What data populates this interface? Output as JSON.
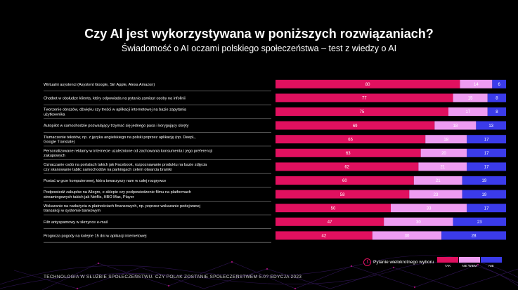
{
  "title": "Czy AI jest wykorzystywana w poniższych rozwiązaniach?",
  "subtitle": "Świadomość o AI oczami polskiego społeczeństwa – test z wiedzy o AI",
  "footer": "TECHNOLOGIA W SŁUŻBIE SPOŁECZEŃSTWU. CZY POLAK ZOSTANIE SPOŁECZEŃSTWEM 5.0? EDYCJA 2023",
  "note": "Pytanie wielokrotnego wyboru",
  "note_icon": "!",
  "colors": {
    "tak": "#e0105f",
    "nie_wiem": "#ee9cf2",
    "nie": "#3b3bea"
  },
  "chart_data": {
    "type": "bar",
    "orientation": "horizontal",
    "stacked": true,
    "categories": [
      "Wirtualni asystenci (Asystent Google, Siri Apple, Alexa Amazon)",
      "Chatbot w obsłudze klienta, który odpowiada na pytania zamiast osoby na infolinii",
      "Tworzenie obrazów, dźwięku czy treści w aplikacji internetowej na bazie zapytania użytkownika",
      "Autopilot w samochodzie pozwalający trzymać się jednego pasa i korygujący skręty",
      "Tłumaczenie tekstów, np. z języka angielskiego na polski poprzez aplikację (np. DeepL, Google Translate)",
      "Personalizowane reklamy w internecie uzależnione od zachowania konsumenta i jego preferencji zakupowych",
      "Oznaczanie osób na portalach takich jak Facebook, rozpoznawanie produktu na bazie zdjęcia czy skanowanie tablic samochodów na parkingach celem otwarcia bramki",
      "Postać w grze komputerowej, która towarzyszy nam w całej rozgrywce",
      "Podpowiedź zakupów na Allegro, e-sklepie czy podpowiedzenie filmu na platformach streamingowych takich jak Netflix, HBO Max, Player",
      "Wskazanie na nadużycia w płatnościach finansowych, np. poprzez wskazanie podejrzanej transakcji w systemie bankowym",
      "Filtr antyspamowy w skrzynce e-mail",
      "Prognoza pogody na kolejne 15 dni w aplikacji internetowej"
    ],
    "series": [
      {
        "name": "TAK",
        "values": [
          80,
          77,
          75,
          69,
          65,
          63,
          62,
          60,
          58,
          50,
          47,
          42
        ]
      },
      {
        "name": "NIE WIEM",
        "values": [
          14,
          15,
          17,
          18,
          18,
          20,
          21,
          21,
          23,
          33,
          30,
          30
        ]
      },
      {
        "name": "NIE",
        "values": [
          6,
          8,
          8,
          13,
          17,
          17,
          17,
          19,
          19,
          17,
          23,
          28
        ]
      }
    ],
    "xlim": [
      0,
      100
    ],
    "legend": "bottom-right"
  }
}
